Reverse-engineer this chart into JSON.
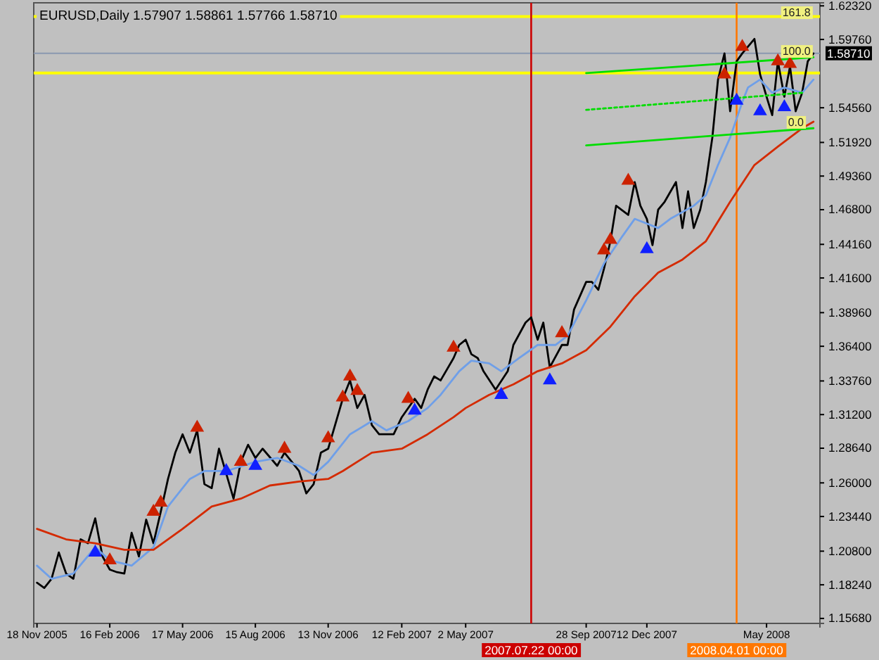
{
  "chart_data": {
    "type": "line",
    "title": "EURUSD,Daily  1.57907 1.58861 1.57766 1.58710",
    "xlim": [
      "2005-11-14",
      "2008-07-13"
    ],
    "xticks": [
      {
        "value": "2005-11-18",
        "label": "18 Nov 2005"
      },
      {
        "value": "2006-02-16",
        "label": "16 Feb 2006"
      },
      {
        "value": "2006-05-17",
        "label": "17 May 2006"
      },
      {
        "value": "2006-08-15",
        "label": "15 Aug 2006"
      },
      {
        "value": "2006-11-13",
        "label": "13 Nov 2006"
      },
      {
        "value": "2007-02-12",
        "label": "12 Feb 2007"
      },
      {
        "value": "2007-05-02",
        "label": "2 May 2007"
      },
      {
        "value": "2007-09-28",
        "label": "28 Sep 2007"
      },
      {
        "value": "2007-12-12",
        "label": "12 Dec 2007"
      },
      {
        "value": "2008-05-08",
        "label": "May 2008"
      }
    ],
    "ylim": [
      1.153,
      1.6255
    ],
    "yticks": [
      {
        "value": 1.1568,
        "label": "1.15680"
      },
      {
        "value": 1.1824,
        "label": "1.18240"
      },
      {
        "value": 1.208,
        "label": "1.20800"
      },
      {
        "value": 1.2344,
        "label": "1.23440"
      },
      {
        "value": 1.26,
        "label": "1.26000"
      },
      {
        "value": 1.2864,
        "label": "1.28640"
      },
      {
        "value": 1.312,
        "label": "1.31200"
      },
      {
        "value": 1.3376,
        "label": "1.33760"
      },
      {
        "value": 1.364,
        "label": "1.36400"
      },
      {
        "value": 1.3896,
        "label": "1.38960"
      },
      {
        "value": 1.416,
        "label": "1.41600"
      },
      {
        "value": 1.4416,
        "label": "1.44160"
      },
      {
        "value": 1.468,
        "label": "1.46800"
      },
      {
        "value": 1.4936,
        "label": "1.49360"
      },
      {
        "value": 1.5192,
        "label": "1.51920"
      },
      {
        "value": 1.5456,
        "label": "1.54560"
      },
      {
        "value": 1.5976,
        "label": "1.59760"
      },
      {
        "value": 1.6232,
        "label": "1.62320"
      }
    ],
    "grid": false,
    "series": [
      {
        "color": "#000000",
        "x": [
          "2005-11-18",
          "2005-11-27",
          "2005-12-06",
          "2005-12-15",
          "2005-12-24",
          "2006-01-02",
          "2006-01-11",
          "2006-01-20",
          "2006-01-29",
          "2006-02-07",
          "2006-02-16",
          "2006-02-25",
          "2006-03-06",
          "2006-03-15",
          "2006-03-24",
          "2006-04-02",
          "2006-04-11",
          "2006-04-20",
          "2006-04-29",
          "2006-05-08",
          "2006-05-17",
          "2006-05-26",
          "2006-06-04",
          "2006-06-13",
          "2006-06-22",
          "2006-07-01",
          "2006-07-19",
          "2006-07-28",
          "2006-08-06",
          "2006-08-15",
          "2006-08-24",
          "2006-09-11",
          "2006-09-20",
          "2006-10-08",
          "2006-10-17",
          "2006-10-26",
          "2006-11-04",
          "2006-11-13",
          "2006-12-01",
          "2006-12-10",
          "2006-12-19",
          "2006-12-28",
          "2007-01-06",
          "2007-01-15",
          "2007-02-02",
          "2007-02-12",
          "2007-02-28",
          "2007-03-08",
          "2007-03-16",
          "2007-03-24",
          "2007-04-01",
          "2007-04-17",
          "2007-04-24",
          "2007-05-02",
          "2007-05-09",
          "2007-05-17",
          "2007-05-24",
          "2007-06-08",
          "2007-06-23",
          "2007-06-30",
          "2007-07-15",
          "2007-07-22",
          "2007-07-30",
          "2007-08-06",
          "2007-08-14",
          "2007-08-29",
          "2007-09-05",
          "2007-09-13",
          "2007-09-28",
          "2007-10-05",
          "2007-10-13",
          "2007-10-20",
          "2007-10-28",
          "2007-11-04",
          "2007-11-19",
          "2007-11-27",
          "2007-12-04",
          "2007-12-12",
          "2007-12-19",
          "2007-12-26",
          "2008-01-03",
          "2008-01-17",
          "2008-01-25",
          "2008-02-01",
          "2008-02-08",
          "2008-02-16",
          "2008-02-23",
          "2008-03-02",
          "2008-03-09",
          "2008-03-17",
          "2008-03-24",
          "2008-04-01",
          "2008-04-08",
          "2008-04-23",
          "2008-04-30",
          "2008-05-08",
          "2008-05-15",
          "2008-05-22",
          "2008-05-30",
          "2008-06-06",
          "2008-06-13",
          "2008-06-21",
          "2008-06-28",
          "2008-07-05"
        ],
        "values": [
          1.184,
          1.18,
          1.187,
          1.207,
          1.191,
          1.187,
          1.217,
          1.214,
          1.233,
          1.204,
          1.194,
          1.192,
          1.191,
          1.222,
          1.204,
          1.232,
          1.214,
          1.238,
          1.263,
          1.283,
          1.297,
          1.283,
          1.3,
          1.259,
          1.256,
          1.286,
          1.248,
          1.276,
          1.289,
          1.279,
          1.286,
          1.273,
          1.283,
          1.269,
          1.252,
          1.259,
          1.283,
          1.286,
          1.324,
          1.338,
          1.317,
          1.327,
          1.304,
          1.297,
          1.297,
          1.31,
          1.324,
          1.317,
          1.331,
          1.341,
          1.338,
          1.355,
          1.365,
          1.369,
          1.358,
          1.355,
          1.345,
          1.331,
          1.345,
          1.365,
          1.382,
          1.386,
          1.369,
          1.382,
          1.348,
          1.365,
          1.365,
          1.392,
          1.413,
          1.413,
          1.407,
          1.423,
          1.444,
          1.471,
          1.464,
          1.489,
          1.471,
          1.461,
          1.441,
          1.468,
          1.474,
          1.489,
          1.454,
          1.482,
          1.454,
          1.468,
          1.489,
          1.523,
          1.567,
          1.587,
          1.543,
          1.581,
          1.587,
          1.598,
          1.571,
          1.554,
          1.54,
          1.581,
          1.554,
          1.577,
          1.543,
          1.557,
          1.581,
          1.587
        ]
      },
      {
        "color": "#6f9fe8",
        "x": [
          "2005-11-18",
          "2005-12-06",
          "2006-01-02",
          "2006-01-29",
          "2006-02-16",
          "2006-03-15",
          "2006-04-11",
          "2006-04-29",
          "2006-05-26",
          "2006-06-13",
          "2006-07-10",
          "2006-08-15",
          "2006-09-11",
          "2006-10-08",
          "2006-10-26",
          "2006-11-13",
          "2006-12-10",
          "2007-01-06",
          "2007-01-24",
          "2007-02-20",
          "2007-03-16",
          "2007-04-01",
          "2007-04-24",
          "2007-05-09",
          "2007-05-31",
          "2007-06-15",
          "2007-07-07",
          "2007-07-30",
          "2007-08-21",
          "2007-09-05",
          "2007-09-28",
          "2007-10-20",
          "2007-11-12",
          "2007-11-27",
          "2007-12-26",
          "2008-01-10",
          "2008-02-08",
          "2008-02-23",
          "2008-03-09",
          "2008-03-24",
          "2008-04-08",
          "2008-04-15",
          "2008-04-30",
          "2008-05-15",
          "2008-05-30",
          "2008-06-21",
          "2008-07-05"
        ],
        "values": [
          1.197,
          1.187,
          1.191,
          1.211,
          1.201,
          1.197,
          1.211,
          1.242,
          1.263,
          1.269,
          1.269,
          1.276,
          1.279,
          1.273,
          1.266,
          1.276,
          1.297,
          1.307,
          1.3,
          1.307,
          1.317,
          1.327,
          1.345,
          1.353,
          1.351,
          1.345,
          1.355,
          1.365,
          1.365,
          1.372,
          1.399,
          1.427,
          1.448,
          1.461,
          1.454,
          1.461,
          1.471,
          1.479,
          1.502,
          1.523,
          1.55,
          1.561,
          1.567,
          1.557,
          1.561,
          1.557,
          1.567
        ]
      },
      {
        "color": "#d42a00",
        "x": [
          "2005-11-18",
          "2005-12-24",
          "2006-01-29",
          "2006-03-06",
          "2006-04-11",
          "2006-05-17",
          "2006-06-22",
          "2006-07-28",
          "2006-09-02",
          "2006-10-08",
          "2006-11-13",
          "2006-12-01",
          "2007-01-06",
          "2007-02-12",
          "2007-03-16",
          "2007-04-17",
          "2007-05-02",
          "2007-05-31",
          "2007-06-30",
          "2007-07-30",
          "2007-08-29",
          "2007-09-28",
          "2007-10-28",
          "2007-11-27",
          "2007-12-26",
          "2008-01-25",
          "2008-02-23",
          "2008-03-24",
          "2008-04-23",
          "2008-05-22",
          "2008-06-21",
          "2008-07-05"
        ],
        "values": [
          1.225,
          1.217,
          1.214,
          1.209,
          1.209,
          1.225,
          1.242,
          1.248,
          1.258,
          1.261,
          1.263,
          1.269,
          1.283,
          1.286,
          1.297,
          1.31,
          1.317,
          1.327,
          1.335,
          1.345,
          1.351,
          1.361,
          1.379,
          1.402,
          1.42,
          1.43,
          1.444,
          1.474,
          1.502,
          1.516,
          1.53,
          1.535
        ]
      },
      {
        "color": "#00dd00",
        "x": [
          "2007-09-28",
          "2008-07-05"
        ],
        "values": [
          1.572,
          1.584
        ]
      },
      {
        "color": "#00dd00",
        "line_style": "dotted",
        "x": [
          "2007-09-28",
          "2008-06-21"
        ],
        "values": [
          1.544,
          1.557
        ]
      },
      {
        "color": "#00dd00",
        "x": [
          "2007-09-28",
          "2008-07-05"
        ],
        "values": [
          1.517,
          1.53
        ]
      },
      {
        "type": "scatter",
        "color": "#cc2200",
        "marker": "triangle",
        "x": [
          "2006-02-16",
          "2006-04-11",
          "2006-04-20",
          "2006-06-04",
          "2006-07-28",
          "2006-09-20",
          "2006-11-13",
          "2006-12-01",
          "2006-12-10",
          "2006-12-19",
          "2007-02-20",
          "2007-04-17",
          "2007-08-29",
          "2007-10-20",
          "2007-10-28",
          "2007-11-19",
          "2008-03-17",
          "2008-04-08",
          "2008-05-22",
          "2008-06-06"
        ],
        "values": [
          1.201,
          1.238,
          1.245,
          1.302,
          1.276,
          1.286,
          1.294,
          1.325,
          1.341,
          1.33,
          1.324,
          1.363,
          1.374,
          1.437,
          1.445,
          1.49,
          1.571,
          1.592,
          1.581,
          1.579
        ]
      },
      {
        "type": "scatter",
        "color": "#1020ff",
        "marker": "triangle",
        "x": [
          "2006-01-29",
          "2006-07-10",
          "2006-08-15",
          "2007-02-28",
          "2007-06-15",
          "2007-08-14",
          "2007-12-12",
          "2008-04-01",
          "2008-04-30",
          "2008-05-30"
        ],
        "values": [
          1.207,
          1.269,
          1.273,
          1.315,
          1.327,
          1.338,
          1.438,
          1.551,
          1.543,
          1.546
        ]
      }
    ],
    "ref_lines": [
      {
        "axis": "y",
        "value": 1.615,
        "color": "#ffff00"
      },
      {
        "axis": "y",
        "value": 1.572,
        "label": null,
        "color": "#ffff00"
      },
      {
        "axis": "y",
        "value": 1.5871,
        "label": "1.58710",
        "color": "#8a98b0"
      },
      {
        "axis": "x",
        "value": "2007-07-22",
        "label": "2007.07.22 00:00",
        "color": "#cc0000"
      },
      {
        "axis": "x",
        "value": "2008-04-01",
        "label": "2008.04.01 00:00",
        "color": "#ff7700"
      }
    ],
    "annotations": [
      {
        "text": "161.8",
        "x": "2008-06-21",
        "y": 1.6185
      },
      {
        "text": "100.0",
        "x": "2008-06-21",
        "y": 1.589
      },
      {
        "text": "0.0",
        "x": "2008-06-28",
        "y": 1.535
      }
    ]
  }
}
